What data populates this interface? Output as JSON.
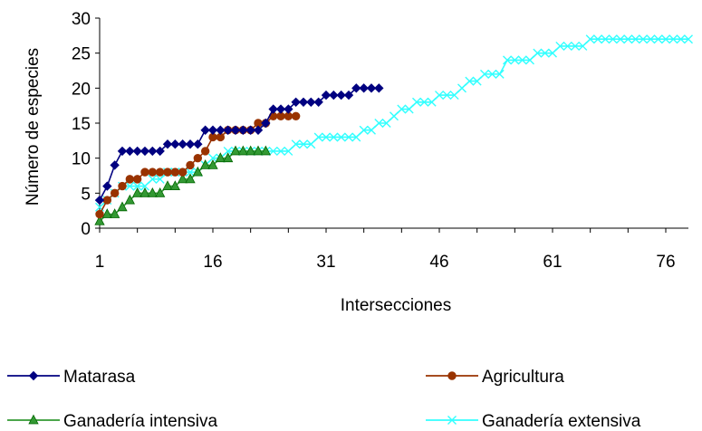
{
  "chart_data": {
    "type": "line",
    "xlabel": "Intersecciones",
    "ylabel": "Número de especies",
    "xlim": [
      1,
      79
    ],
    "ylim": [
      0,
      30
    ],
    "xticks": [
      "1",
      "16",
      "31",
      "46",
      "61",
      "76"
    ],
    "yticks": [
      "0",
      "5",
      "10",
      "15",
      "20",
      "25",
      "30"
    ],
    "legend_position": "bottom",
    "series": [
      {
        "name": "Matarasa",
        "color": "#000080",
        "marker": "diamond",
        "values": [
          4,
          6,
          9,
          11,
          11,
          11,
          11,
          11,
          11,
          12,
          12,
          12,
          12,
          12,
          14,
          14,
          14,
          14,
          14,
          14,
          14,
          14,
          15,
          17,
          17,
          17,
          18,
          18,
          18,
          18,
          19,
          19,
          19,
          19,
          20,
          20,
          20,
          20
        ]
      },
      {
        "name": "Agricultura",
        "color": "#993300",
        "marker": "circle",
        "values": [
          2,
          4,
          5,
          6,
          7,
          7,
          8,
          8,
          8,
          8,
          8,
          8,
          9,
          10,
          11,
          13,
          13,
          14,
          14,
          14,
          14,
          15,
          15,
          16,
          16,
          16,
          16
        ]
      },
      {
        "name": "Ganadería intensiva",
        "color": "#339933",
        "marker": "triangle",
        "values": [
          1,
          2,
          2,
          3,
          4,
          5,
          5,
          5,
          5,
          6,
          6,
          7,
          7,
          8,
          9,
          9,
          10,
          10,
          11,
          11,
          11,
          11,
          11
        ]
      },
      {
        "name": "Ganadería extensiva",
        "color": "#33ffff",
        "marker": "x",
        "values": [
          3,
          4,
          5,
          6,
          6,
          6,
          6,
          7,
          7,
          8,
          8,
          8,
          8,
          8,
          9,
          10,
          10,
          11,
          11,
          11,
          11,
          11,
          11,
          11,
          11,
          11,
          12,
          12,
          12,
          13,
          13,
          13,
          13,
          13,
          13,
          14,
          14,
          15,
          15,
          16,
          17,
          17,
          18,
          18,
          18,
          19,
          19,
          19,
          20,
          21,
          21,
          22,
          22,
          22,
          24,
          24,
          24,
          24,
          25,
          25,
          25,
          26,
          26,
          26,
          26,
          27,
          27,
          27,
          27,
          27,
          27,
          27,
          27,
          27,
          27,
          27,
          27,
          27,
          27
        ]
      }
    ]
  }
}
